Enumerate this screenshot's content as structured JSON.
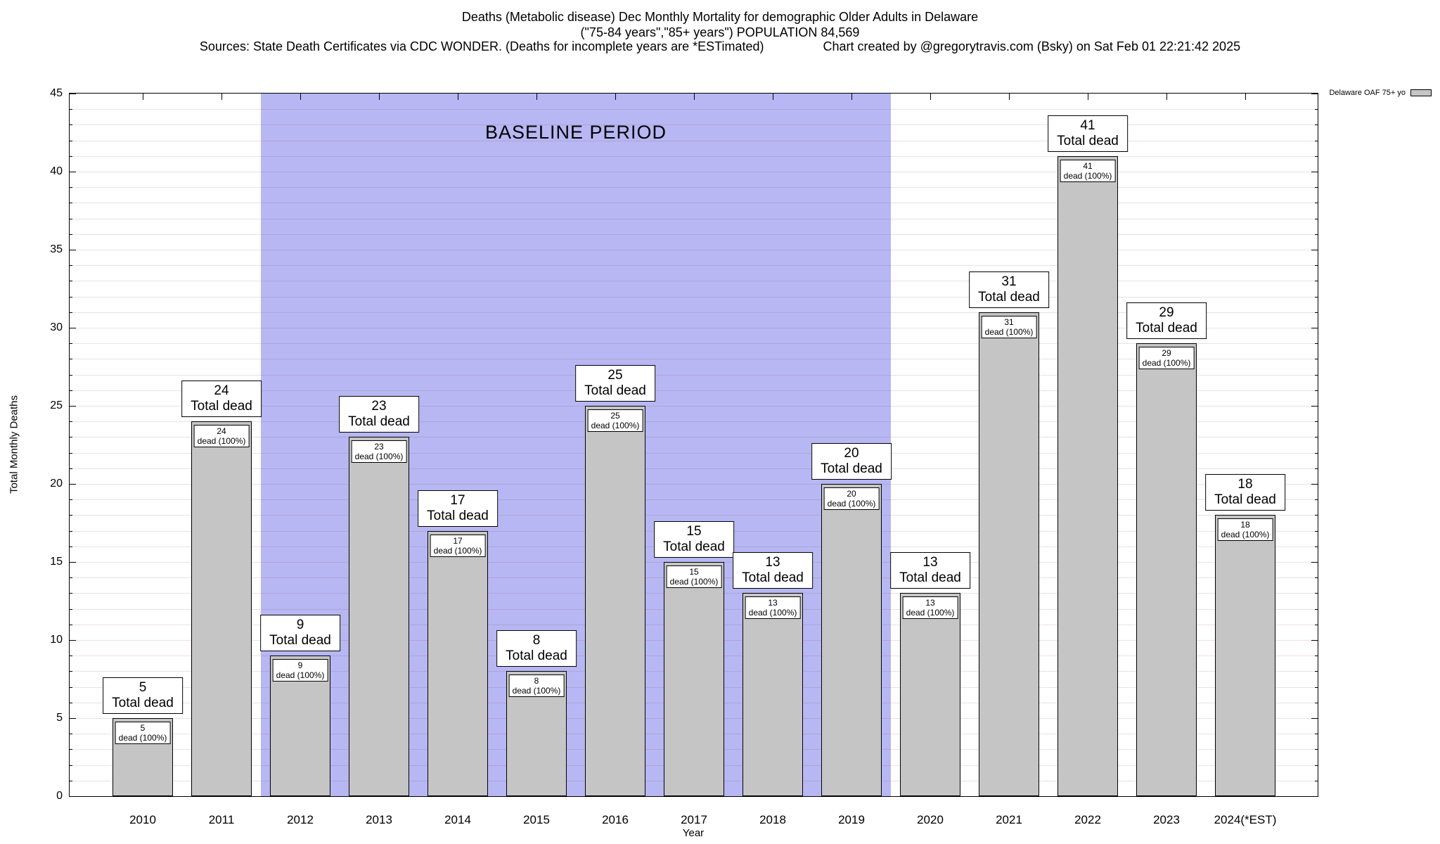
{
  "header": {
    "title_line1": "Deaths (Metabolic disease) Dec Monthly Mortality for demographic Older Adults in Delaware",
    "title_line2": "(\"75-84 years\",\"85+ years\") POPULATION 84,569",
    "sources": "Sources: State Death Certificates via CDC WONDER. (Deaths for incomplete years are *ESTimated)",
    "credit": "Chart created by @gregorytravis.com (Bsky) on Sat Feb 01 22:21:42 2025"
  },
  "chart_data": {
    "type": "bar",
    "title": "Deaths (Metabolic disease) Dec Monthly Mortality for demographic Older Adults in Delaware",
    "subtitle": "(\"75-84 years\",\"85+ years\") POPULATION 84,569",
    "categories": [
      "2010",
      "2011",
      "2012",
      "2013",
      "2014",
      "2015",
      "2016",
      "2017",
      "2018",
      "2019",
      "2020",
      "2021",
      "2022",
      "2023",
      "2024(*EST)"
    ],
    "values": [
      5,
      24,
      9,
      23,
      17,
      8,
      25,
      15,
      13,
      20,
      13,
      31,
      41,
      29,
      18
    ],
    "bar_total_label": "Total dead",
    "bar_inner_label": "dead (100%)",
    "xlabel": "Year",
    "ylabel": "Total Monthly Deaths",
    "ylim": [
      0,
      45
    ],
    "ytick_step": 5,
    "grid": "on",
    "baseline": {
      "label": "BASELINE PERIOD",
      "start_category": "2012",
      "end_category": "2019"
    },
    "legend": {
      "label": "Delaware OAF 75+ yo",
      "position": "top-right"
    },
    "colors": {
      "bar_fill": "#c5c5c5",
      "baseline_fill": "#b7b7f3",
      "grid": "rgba(150,60,60,0.16)",
      "box_bg": "#ffffff",
      "text": "#000000"
    }
  }
}
